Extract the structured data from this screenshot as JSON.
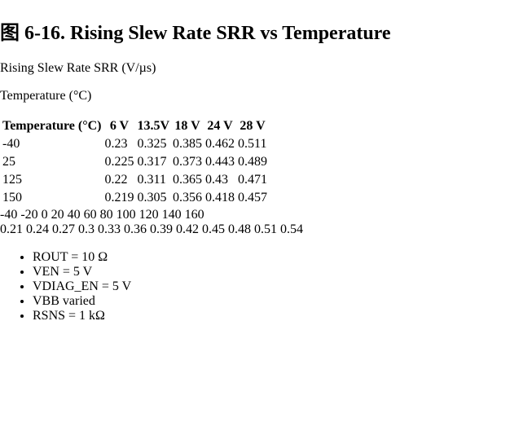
{
  "chart_data": {
    "type": "line",
    "x": [
      -40,
      25,
      125,
      150
    ],
    "series": [
      {
        "name": "6 V",
        "values": [
          0.23,
          0.225,
          0.22,
          0.219
        ]
      },
      {
        "name": "13.5V",
        "values": [
          0.325,
          0.317,
          0.311,
          0.305
        ]
      },
      {
        "name": "18 V",
        "values": [
          0.385,
          0.373,
          0.365,
          0.356
        ]
      },
      {
        "name": "24 V",
        "values": [
          0.462,
          0.443,
          0.43,
          0.418
        ]
      },
      {
        "name": "28 V",
        "values": [
          0.511,
          0.489,
          0.471,
          0.457
        ]
      }
    ],
    "xlabel": "Temperature (°C)",
    "ylabel": "Rising Slew Rate SRR (V/µs)",
    "xticks": [
      "-40",
      "-20",
      "0",
      "20",
      "40",
      "60",
      "80",
      "100",
      "120",
      "140",
      "160"
    ],
    "yticks": [
      "0.21",
      "0.24",
      "0.27",
      "0.3",
      "0.33",
      "0.36",
      "0.39",
      "0.42",
      "0.45",
      "0.48",
      "0.51",
      "0.54"
    ],
    "xlim": [
      -40,
      160
    ],
    "ylim": [
      0.21,
      0.54
    ],
    "grid": true,
    "legend_placement": "top",
    "annotations": [
      "ROUT = 10 Ω",
      "VEN = 5 V",
      "VDIAG_EN = 5 V",
      "VBB varied",
      "RSNS = 1 kΩ"
    ],
    "caption": "图 6-16. Rising Slew Rate SRR vs Temperature"
  }
}
